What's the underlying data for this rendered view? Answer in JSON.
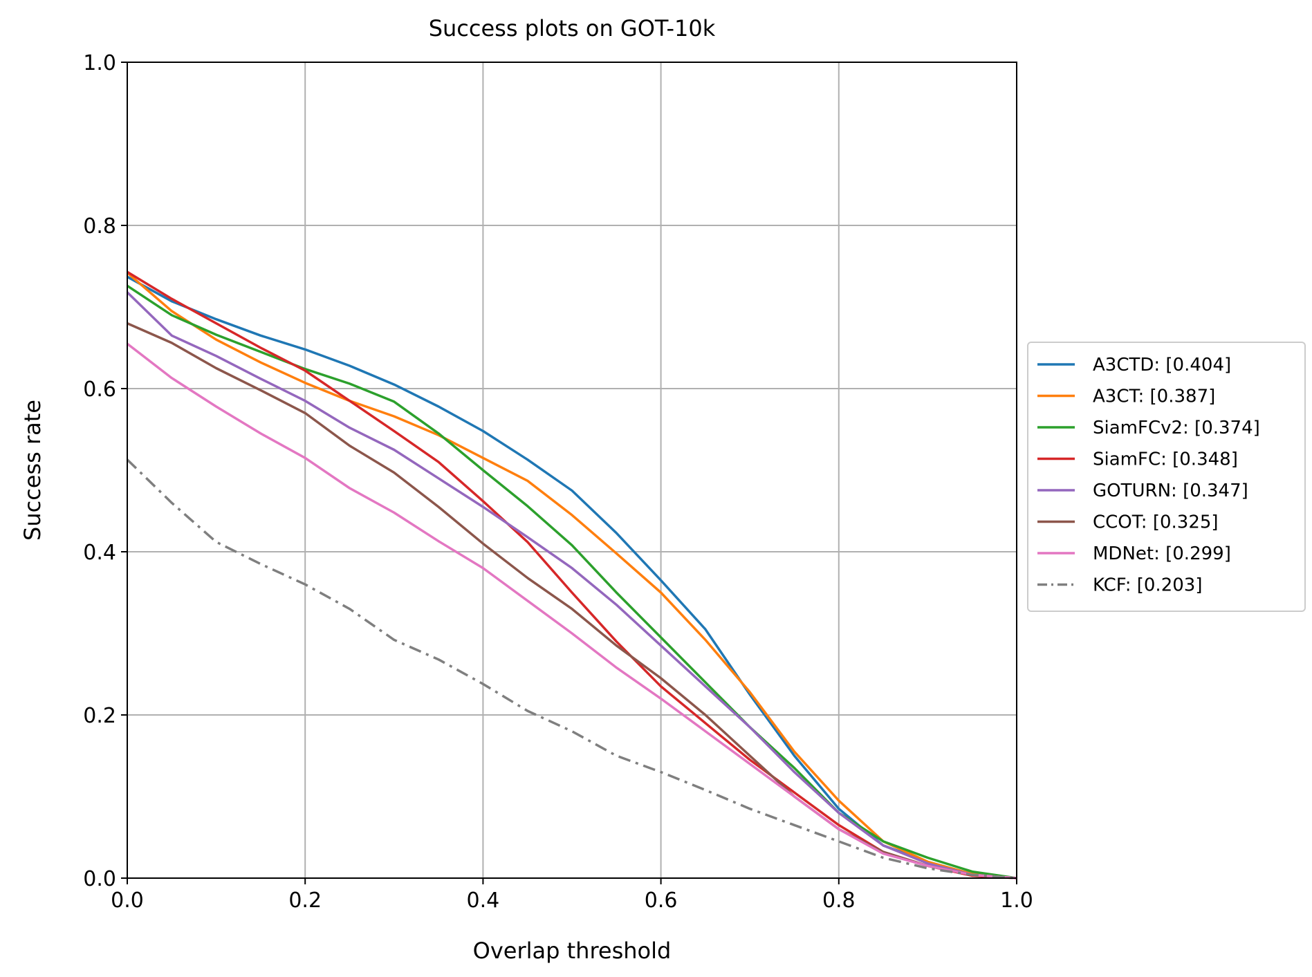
{
  "chart_data": {
    "type": "line",
    "title": "Success plots on GOT-10k",
    "xlabel": "Overlap threshold",
    "ylabel": "Success rate",
    "xlim": [
      0,
      1
    ],
    "ylim": [
      0,
      1
    ],
    "grid": true,
    "legend_position": "right-outside",
    "x_ticks": [
      0.0,
      0.2,
      0.4,
      0.6,
      0.8,
      1.0
    ],
    "y_ticks": [
      0.0,
      0.2,
      0.4,
      0.6,
      0.8,
      1.0
    ],
    "x_tick_labels": [
      "0.0",
      "0.2",
      "0.4",
      "0.6",
      "0.8",
      "1.0"
    ],
    "y_tick_labels": [
      "0.0",
      "0.2",
      "0.4",
      "0.6",
      "0.8",
      "1.0"
    ],
    "x": [
      0.0,
      0.05,
      0.1,
      0.15,
      0.2,
      0.25,
      0.3,
      0.35,
      0.4,
      0.45,
      0.5,
      0.55,
      0.6,
      0.65,
      0.7,
      0.75,
      0.8,
      0.85,
      0.9,
      0.95,
      1.0
    ],
    "series": [
      {
        "name": "A3CTD: [0.404]",
        "color": "#1f77b4",
        "dash": "solid",
        "values": [
          0.737,
          0.707,
          0.685,
          0.665,
          0.648,
          0.628,
          0.605,
          0.578,
          0.548,
          0.513,
          0.475,
          0.423,
          0.365,
          0.305,
          0.225,
          0.15,
          0.085,
          0.04,
          0.02,
          0.005,
          0.0
        ]
      },
      {
        "name": "A3CT: [0.387]",
        "color": "#ff7f0e",
        "dash": "solid",
        "values": [
          0.742,
          0.695,
          0.66,
          0.632,
          0.607,
          0.585,
          0.566,
          0.543,
          0.515,
          0.487,
          0.445,
          0.398,
          0.35,
          0.292,
          0.228,
          0.155,
          0.095,
          0.045,
          0.02,
          0.005,
          0.0
        ]
      },
      {
        "name": "SiamFCv2: [0.374]",
        "color": "#2ca02c",
        "dash": "solid",
        "values": [
          0.726,
          0.69,
          0.666,
          0.645,
          0.624,
          0.606,
          0.584,
          0.545,
          0.5,
          0.456,
          0.408,
          0.35,
          0.295,
          0.24,
          0.185,
          0.135,
          0.08,
          0.045,
          0.025,
          0.008,
          0.0
        ]
      },
      {
        "name": "SiamFC: [0.348]",
        "color": "#d62728",
        "dash": "solid",
        "values": [
          0.743,
          0.71,
          0.68,
          0.65,
          0.622,
          0.585,
          0.548,
          0.51,
          0.462,
          0.412,
          0.35,
          0.29,
          0.235,
          0.19,
          0.145,
          0.105,
          0.065,
          0.032,
          0.015,
          0.003,
          0.0
        ]
      },
      {
        "name": "GOTURN: [0.347]",
        "color": "#9467bd",
        "dash": "solid",
        "values": [
          0.718,
          0.665,
          0.64,
          0.612,
          0.585,
          0.552,
          0.525,
          0.49,
          0.455,
          0.418,
          0.38,
          0.335,
          0.285,
          0.235,
          0.185,
          0.13,
          0.08,
          0.04,
          0.018,
          0.004,
          0.0
        ]
      },
      {
        "name": "CCOT: [0.325]",
        "color": "#8c564b",
        "dash": "solid",
        "values": [
          0.68,
          0.656,
          0.625,
          0.598,
          0.57,
          0.53,
          0.497,
          0.455,
          0.41,
          0.368,
          0.33,
          0.285,
          0.245,
          0.2,
          0.15,
          0.1,
          0.06,
          0.032,
          0.015,
          0.004,
          0.0
        ]
      },
      {
        "name": "MDNet: [0.299]",
        "color": "#e377c2",
        "dash": "solid",
        "values": [
          0.655,
          0.613,
          0.578,
          0.545,
          0.515,
          0.478,
          0.448,
          0.413,
          0.38,
          0.34,
          0.3,
          0.258,
          0.22,
          0.18,
          0.14,
          0.1,
          0.06,
          0.03,
          0.015,
          0.004,
          0.0
        ]
      },
      {
        "name": "KCF: [0.203]",
        "color": "#7f7f7f",
        "dash": "dashdot",
        "values": [
          0.513,
          0.46,
          0.412,
          0.385,
          0.36,
          0.33,
          0.292,
          0.268,
          0.238,
          0.205,
          0.18,
          0.15,
          0.13,
          0.108,
          0.085,
          0.065,
          0.045,
          0.025,
          0.012,
          0.004,
          0.0
        ]
      }
    ]
  }
}
